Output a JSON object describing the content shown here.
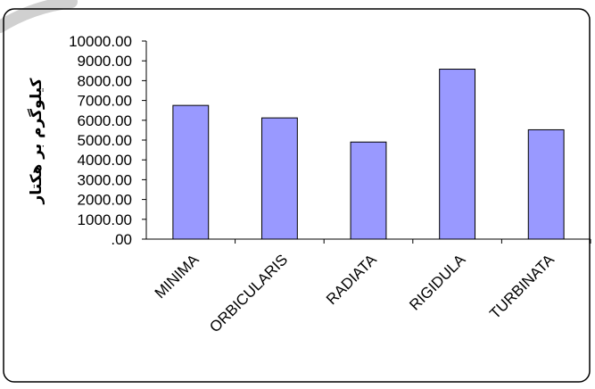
{
  "chart_data": {
    "type": "bar",
    "title": "",
    "xlabel": "",
    "ylabel": "کیلوگرم بر هکتار",
    "categories": [
      "MINIMA",
      "ORBICULARIS",
      "RADIATA",
      "RIGIDULA",
      "TURBINATA"
    ],
    "series": [
      {
        "values": [
          6750,
          6120,
          4900,
          8580,
          5520
        ]
      }
    ],
    "ylim": [
      0,
      10000
    ],
    "yticks": [
      "10000.00",
      "9000.00",
      "8000.00",
      "7000.00",
      "6000.00",
      "5000.00",
      "4000.00",
      "3000.00",
      "2000.00",
      "1000.00",
      ".00"
    ],
    "bar_color": "#9999ff",
    "bar_edge_color": "#000000",
    "grid": false,
    "legend": "none"
  }
}
